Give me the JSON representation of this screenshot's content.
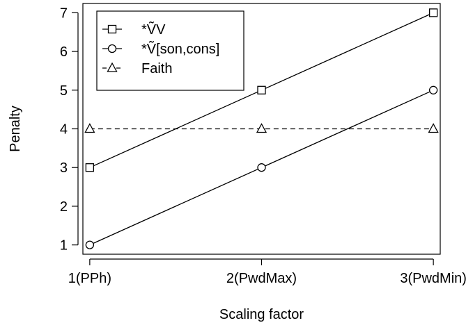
{
  "chart_data": {
    "type": "line",
    "title": "",
    "xlabel": "Scaling factor",
    "ylabel": "Penalty",
    "categories": [
      "1(PPh)",
      "2(PwdMax)",
      "3(PwdMin)"
    ],
    "x": [
      1,
      2,
      3
    ],
    "xlim": [
      0.96,
      3.04
    ],
    "ylim": [
      0.76,
      7.24
    ],
    "yticks": [
      1,
      2,
      3,
      4,
      5,
      6,
      7
    ],
    "grid": false,
    "legend_position": "top-left",
    "series": [
      {
        "name": "*ṼV",
        "values": [
          3,
          5,
          7
        ],
        "marker": "square",
        "line": "solid",
        "color": "#000000"
      },
      {
        "name": "*Ṽ[son,cons]",
        "values": [
          1,
          3,
          5
        ],
        "marker": "circle",
        "line": "solid",
        "color": "#000000"
      },
      {
        "name": "Faith",
        "values": [
          4,
          4,
          4
        ],
        "marker": "triangle",
        "line": "dashed",
        "color": "#000000"
      }
    ]
  }
}
